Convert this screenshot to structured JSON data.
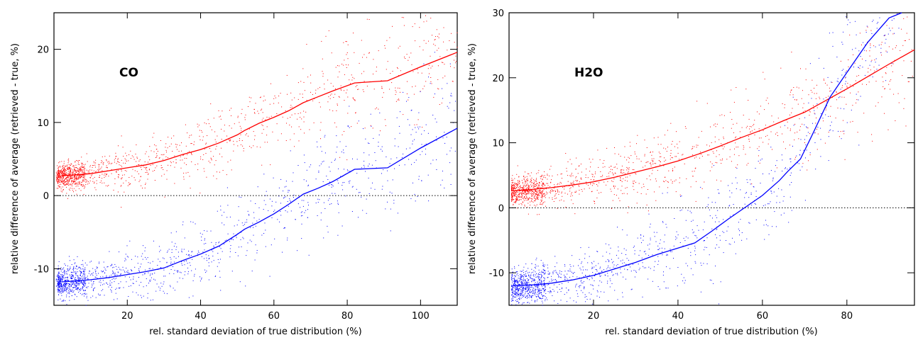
{
  "chart_data": [
    {
      "type": "scatter",
      "annotation": "CO",
      "xlabel": "rel. standard deviation of true distribution (%)",
      "ylabel": "relative difference of average (retrieved - true, %)",
      "xlim": [
        0,
        110
      ],
      "ylim": [
        -15,
        25
      ],
      "xticks": [
        20,
        40,
        60,
        80,
        100
      ],
      "yticks": [
        -10,
        0,
        10,
        20
      ],
      "reference_line": {
        "y": 0,
        "style": "dotted"
      },
      "series": [
        {
          "color": "#ff0000",
          "line": {
            "x": [
              2,
              5,
              10,
              15,
              20,
              25,
              30,
              35,
              40,
              45,
              50,
              52,
              56,
              60,
              64,
              68,
              72,
              76,
              82,
              91,
              100,
              110
            ],
            "y": [
              2.7,
              2.8,
              3.0,
              3.4,
              3.8,
              4.2,
              4.8,
              5.6,
              6.3,
              7.2,
              8.3,
              8.9,
              9.9,
              10.7,
              11.6,
              12.7,
              13.5,
              14.3,
              15.4,
              15.7,
              17.6,
              19.6
            ]
          },
          "scatter_spread": 0.8
        },
        {
          "color": "#0000ff",
          "line": {
            "x": [
              2,
              5,
              10,
              15,
              20,
              25,
              30,
              35,
              40,
              45,
              50,
              52,
              56,
              60,
              64,
              68,
              72,
              76,
              82,
              91,
              100,
              110
            ],
            "y": [
              -11.8,
              -11.7,
              -11.5,
              -11.2,
              -10.8,
              -10.4,
              -9.9,
              -8.9,
              -8.0,
              -6.9,
              -5.3,
              -4.6,
              -3.6,
              -2.5,
              -1.2,
              0.2,
              1.0,
              1.9,
              3.6,
              3.8,
              6.5,
              9.2
            ]
          },
          "scatter_spread": 0.9
        }
      ]
    },
    {
      "type": "scatter",
      "annotation": "H2O",
      "xlabel": "rel. standard deviation of true distribution (%)",
      "ylabel": "relative difference of average (retrieved - true, %)",
      "xlim": [
        0,
        96
      ],
      "ylim": [
        -15,
        30
      ],
      "xticks": [
        20,
        40,
        60,
        80
      ],
      "yticks": [
        -10,
        0,
        10,
        20,
        30
      ],
      "reference_line": {
        "y": 0,
        "style": "dotted"
      },
      "series": [
        {
          "color": "#ff0000",
          "line": {
            "x": [
              1,
              5,
              10,
              15,
              20,
              25,
              30,
              35,
              40,
              45,
              50,
              55,
              60,
              65,
              70,
              75,
              80,
              85,
              90,
              96
            ],
            "y": [
              2.6,
              2.8,
              3.1,
              3.5,
              4.0,
              4.7,
              5.5,
              6.3,
              7.2,
              8.3,
              9.5,
              10.8,
              12.0,
              13.4,
              14.7,
              16.5,
              18.3,
              20.2,
              22.1,
              24.3
            ]
          },
          "scatter_spread": 1.0
        },
        {
          "color": "#0000ff",
          "line": {
            "x": [
              1,
              5,
              10,
              15,
              20,
              25,
              30,
              35,
              40,
              44,
              48,
              52,
              56,
              60,
              64,
              66,
              69,
              72,
              76,
              80,
              85,
              90,
              93
            ],
            "y": [
              -12.0,
              -11.9,
              -11.6,
              -11.1,
              -10.4,
              -9.4,
              -8.4,
              -7.2,
              -6.2,
              -5.4,
              -3.6,
              -1.7,
              0.1,
              1.9,
              4.2,
              5.6,
              7.5,
              11.5,
              17.0,
              20.8,
              25.5,
              29.2,
              31.5
            ]
          },
          "scatter_spread": 1.2
        }
      ]
    }
  ]
}
